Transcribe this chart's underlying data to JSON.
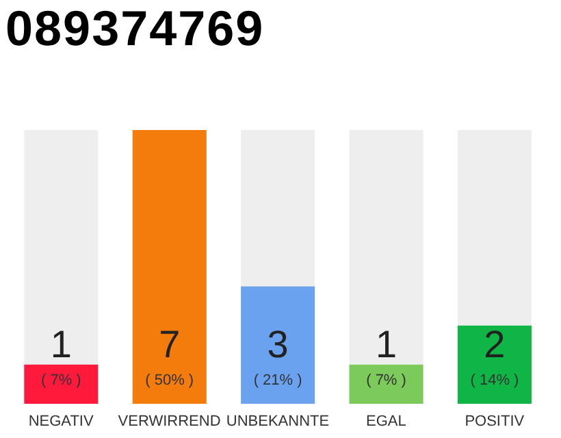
{
  "chart_data": {
    "type": "bar",
    "title": "089374769",
    "categories": [
      "NEGATIV",
      "VERWIRREND",
      "UNBEKANNTE",
      "EGAL",
      "POSITIV"
    ],
    "values": [
      1,
      7,
      3,
      1,
      2
    ],
    "colors": [
      "#ff1a3c",
      "#f47c0c",
      "#6aa2ef",
      "#7ccb5a",
      "#0fb545"
    ],
    "data_labels": true,
    "annotations": [
      "( 7% )",
      "( 50% )",
      "( 21% )",
      "( 7% )",
      "( 14% )"
    ],
    "grid": false,
    "legend": false
  }
}
